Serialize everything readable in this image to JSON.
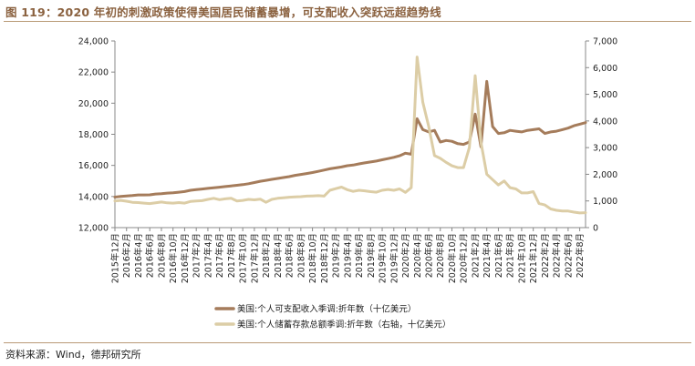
{
  "title": "图 119：2020 年初的刺激政策使得美国居民储蓄暴增，可支配收入突跃远超趋势线",
  "source": "资料来源：Wind，德邦研究所",
  "colors": {
    "income": "#a57c5b",
    "savings": "#dccda6",
    "accent": "#8b6240"
  },
  "chart_data": {
    "type": "line",
    "categories": [
      "2015年12月",
      "2016年2月",
      "2016年4月",
      "2016年6月",
      "2016年8月",
      "2016年10月",
      "2016年12月",
      "2017年2月",
      "2017年4月",
      "2017年6月",
      "2017年8月",
      "2017年10月",
      "2017年12月",
      "2018年2月",
      "2018年4月",
      "2018年6月",
      "2018年8月",
      "2018年10月",
      "2018年12月",
      "2019年2月",
      "2019年4月",
      "2019年6月",
      "2019年8月",
      "2019年10月",
      "2019年12月",
      "2020年2月",
      "2020年4月",
      "2020年6月",
      "2020年8月",
      "2020年10月",
      "2020年12月",
      "2021年2月",
      "2021年4月",
      "2021年6月",
      "2021年8月",
      "2021年10月",
      "2021年12月",
      "2022年2月",
      "2022年4月",
      "2022年6月",
      "2022年8月"
    ],
    "x": [
      "2015年12月",
      "2016年1月",
      "2016年2月",
      "2016年3月",
      "2016年4月",
      "2016年5月",
      "2016年6月",
      "2016年7月",
      "2016年8月",
      "2016年9月",
      "2016年10月",
      "2016年11月",
      "2016年12月",
      "2017年1月",
      "2017年2月",
      "2017年3月",
      "2017年4月",
      "2017年5月",
      "2017年6月",
      "2017年7月",
      "2017年8月",
      "2017年9月",
      "2017年10月",
      "2017年11月",
      "2017年12月",
      "2018年1月",
      "2018年2月",
      "2018年3月",
      "2018年4月",
      "2018年5月",
      "2018年6月",
      "2018年7月",
      "2018年8月",
      "2018年9月",
      "2018年10月",
      "2018年11月",
      "2018年12月",
      "2019年1月",
      "2019年2月",
      "2019年3月",
      "2019年4月",
      "2019年5月",
      "2019年6月",
      "2019年7月",
      "2019年8月",
      "2019年9月",
      "2019年10月",
      "2019年11月",
      "2019年12月",
      "2020年1月",
      "2020年2月",
      "2020年3月",
      "2020年4月",
      "2020年5月",
      "2020年6月",
      "2020年7月",
      "2020年8月",
      "2020年9月",
      "2020年10月",
      "2020年11月",
      "2020年12月",
      "2021年1月",
      "2021年2月",
      "2021年3月",
      "2021年4月",
      "2021年5月",
      "2021年6月",
      "2021年7月",
      "2021年8月",
      "2021年9月",
      "2021年10月",
      "2021年11月",
      "2021年12月",
      "2022年1月",
      "2022年2月",
      "2022年3月",
      "2022年4月",
      "2022年5月",
      "2022年6月",
      "2022年7月",
      "2022年8月",
      "2022年9月"
    ],
    "series": [
      {
        "name": "美国:个人可支配收入季调:折年数（十亿美元）",
        "axis": "left",
        "values": [
          13960,
          14000,
          14030,
          14060,
          14100,
          14100,
          14110,
          14160,
          14180,
          14220,
          14240,
          14280,
          14320,
          14400,
          14440,
          14480,
          14520,
          14560,
          14600,
          14640,
          14680,
          14720,
          14760,
          14820,
          14900,
          14980,
          15040,
          15100,
          15160,
          15220,
          15280,
          15360,
          15420,
          15480,
          15540,
          15620,
          15700,
          15780,
          15840,
          15900,
          15980,
          16020,
          16100,
          16160,
          16220,
          16280,
          16360,
          16440,
          16520,
          16620,
          16780,
          16720,
          19000,
          18300,
          18150,
          18250,
          17500,
          17600,
          17550,
          17400,
          17350,
          17500,
          19300,
          17200,
          21400,
          18500,
          18050,
          18100,
          18250,
          18200,
          18150,
          18250,
          18300,
          18350,
          18050,
          18150,
          18200,
          18300,
          18400,
          18550,
          18650,
          18750
        ]
      },
      {
        "name": "美国:个人储蓄存款总额季调:折年数（右轴，十亿美元）",
        "axis": "right",
        "values": [
          1000,
          1020,
          990,
          950,
          940,
          920,
          900,
          930,
          960,
          930,
          920,
          940,
          920,
          980,
          1000,
          1010,
          1060,
          1100,
          1050,
          1080,
          1100,
          1000,
          1020,
          1060,
          1040,
          1070,
          950,
          1060,
          1100,
          1120,
          1140,
          1150,
          1160,
          1180,
          1190,
          1200,
          1180,
          1400,
          1460,
          1520,
          1420,
          1360,
          1400,
          1380,
          1350,
          1330,
          1400,
          1430,
          1400,
          1450,
          1320,
          1500,
          6400,
          4700,
          3800,
          2700,
          2600,
          2450,
          2320,
          2250,
          2250,
          3000,
          5700,
          3200,
          2000,
          1800,
          1600,
          1750,
          1500,
          1450,
          1300,
          1300,
          1350,
          900,
          850,
          700,
          650,
          620,
          620,
          580,
          550,
          560
        ]
      }
    ],
    "y_left": {
      "min": 12000,
      "max": 24000,
      "ticks": [
        "12,000",
        "14,000",
        "16,000",
        "18,000",
        "20,000",
        "22,000",
        "24,000"
      ]
    },
    "y_right": {
      "min": 0,
      "max": 7000,
      "ticks": [
        "0",
        "1,000",
        "2,000",
        "3,000",
        "4,000",
        "5,000",
        "6,000",
        "7,000"
      ]
    },
    "grid": false,
    "legend_position": "bottom"
  }
}
